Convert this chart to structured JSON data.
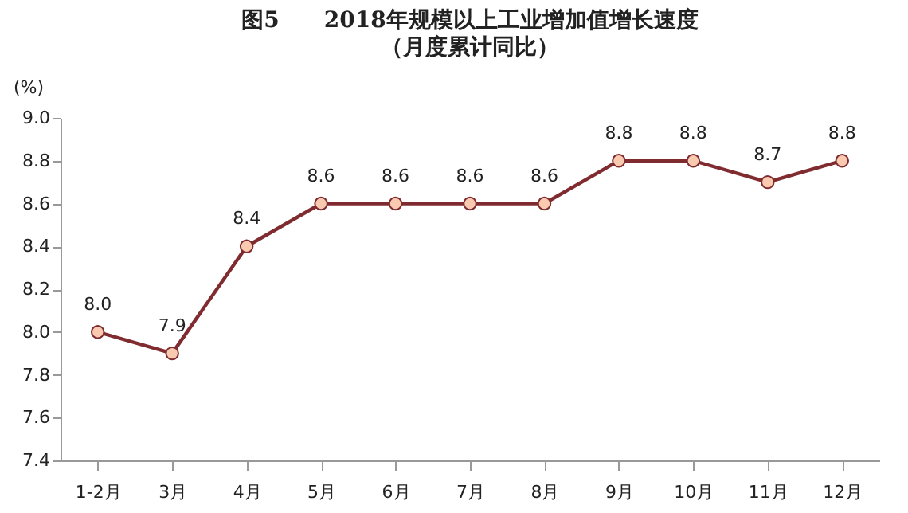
{
  "chart_data": {
    "type": "line",
    "title": "图5　　2018年规模以上工业增加值增长速度",
    "subtitle": "（月度累计同比）",
    "ylabel": "(%)",
    "categories": [
      "1-2月",
      "3月",
      "4月",
      "5月",
      "6月",
      "7月",
      "8月",
      "9月",
      "10月",
      "11月",
      "12月"
    ],
    "series": [
      {
        "color": "#7f2b30",
        "values": [
          8.0,
          7.9,
          8.4,
          8.6,
          8.6,
          8.6,
          8.6,
          8.8,
          8.8,
          8.7,
          8.8
        ],
        "value_labels": [
          "8.0",
          "7.9",
          "8.4",
          "8.6",
          "8.6",
          "8.6",
          "8.6",
          "8.8",
          "8.8",
          "8.7",
          "8.8"
        ]
      }
    ],
    "ylim": [
      7.4,
      9.0
    ],
    "yticks": [
      {
        "value": 7.4,
        "label": "7.4"
      },
      {
        "value": 7.6,
        "label": "7.6"
      },
      {
        "value": 7.8,
        "label": "7.8"
      },
      {
        "value": 8.0,
        "label": "8.0"
      },
      {
        "value": 8.2,
        "label": "8.2"
      },
      {
        "value": 8.4,
        "label": "8.4"
      },
      {
        "value": 8.6,
        "label": "8.6"
      },
      {
        "value": 8.8,
        "label": "8.8"
      },
      {
        "value": 9.0,
        "label": "9.0"
      }
    ],
    "grid": false,
    "marker": "circle",
    "line_style": "solid"
  }
}
